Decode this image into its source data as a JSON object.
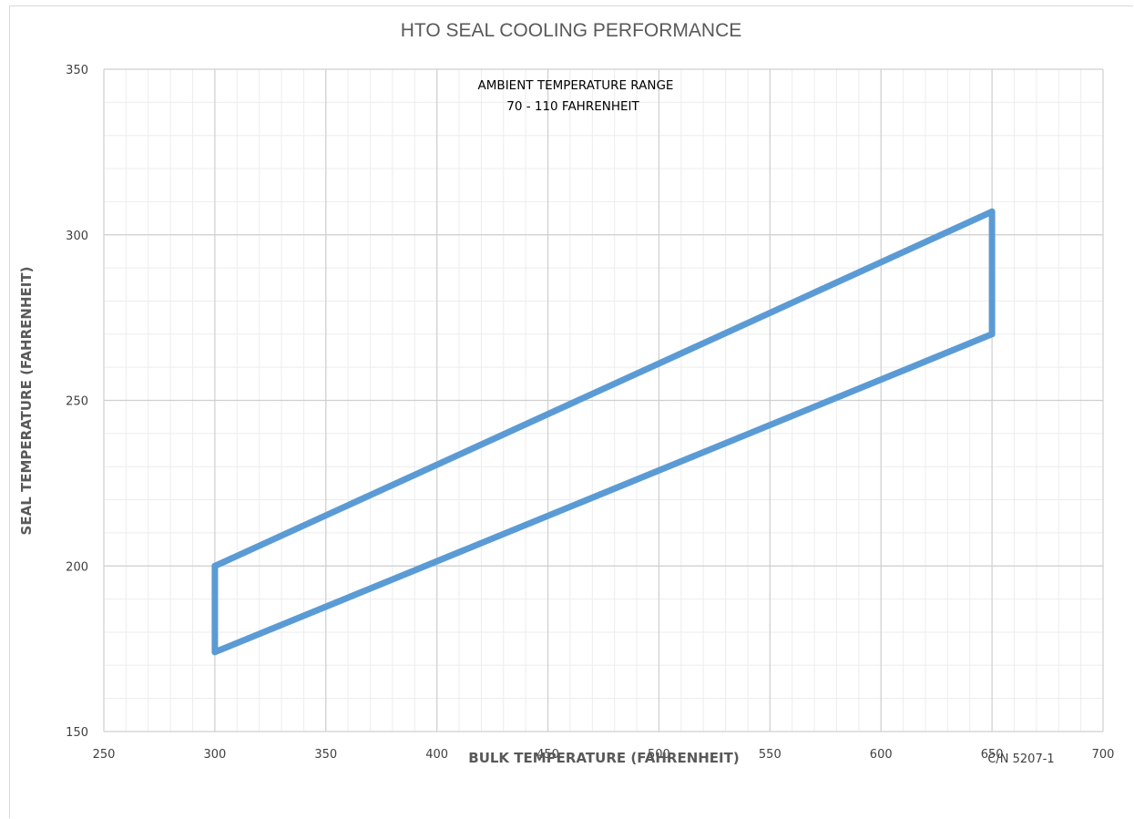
{
  "chart_data": {
    "type": "line",
    "title": "HTO SEAL COOLING PERFORMANCE",
    "xlabel": "BULK TEMPERATURE (FAHRENHEIT)",
    "ylabel": "SEAL TEMPERATURE (FAHRENHEIT)",
    "xlim": [
      250,
      700
    ],
    "ylim": [
      150,
      350
    ],
    "x_ticks": [
      250,
      300,
      350,
      400,
      450,
      500,
      550,
      600,
      650,
      700
    ],
    "y_ticks": [
      150,
      200,
      250,
      300,
      350
    ],
    "grid": true,
    "minor_grid": true,
    "annotation_lines": [
      "AMBIENT TEMPERATURE RANGE",
      "70 - 110 FAHRENHEIT"
    ],
    "footnote": "C/N 5207-1",
    "series": [
      {
        "color": "#5b9bd5",
        "points": [
          [
            300,
            200
          ],
          [
            650,
            307
          ],
          [
            650,
            270
          ],
          [
            300,
            174
          ],
          [
            300,
            200
          ]
        ]
      }
    ]
  }
}
